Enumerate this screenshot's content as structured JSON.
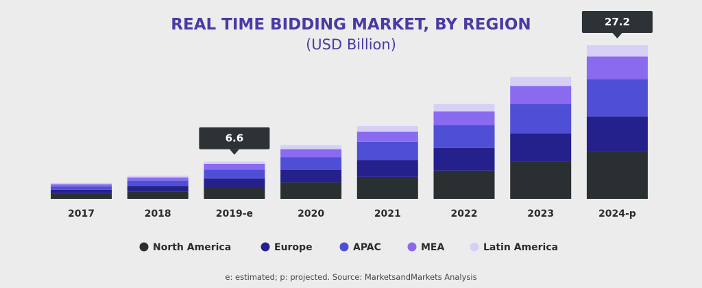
{
  "chart_data": {
    "type": "bar",
    "stacked": true,
    "title": "REAL TIME BIDDING MARKET, BY REGION",
    "subtitle": "(USD Billion)",
    "categories": [
      "2017",
      "2018",
      "2019-e",
      "2020",
      "2021",
      "2022",
      "2023",
      "2024-p"
    ],
    "series": [
      {
        "name": "North America",
        "color": "#2a3032",
        "values": [
          1.0,
          1.3,
          2.0,
          2.9,
          3.9,
          5.0,
          6.6,
          8.3
        ]
      },
      {
        "name": "Europe",
        "color": "#24208c",
        "values": [
          0.6,
          1.0,
          1.6,
          2.2,
          3.0,
          4.0,
          5.0,
          6.3
        ]
      },
      {
        "name": "APAC",
        "color": "#4f4fd6",
        "values": [
          0.6,
          0.9,
          1.6,
          2.3,
          3.2,
          4.1,
          5.2,
          6.6
        ]
      },
      {
        "name": "MEA",
        "color": "#8a6bf0",
        "values": [
          0.4,
          0.6,
          1.0,
          1.4,
          1.8,
          2.4,
          3.2,
          4.0
        ]
      },
      {
        "name": "Latin America",
        "color": "#d6d0f6",
        "values": [
          0.2,
          0.3,
          0.4,
          0.7,
          1.0,
          1.3,
          1.6,
          2.0
        ]
      }
    ],
    "callouts": [
      {
        "category": "2019-e",
        "label": "6.6"
      },
      {
        "category": "2024-p",
        "label": "27.2"
      }
    ],
    "legend_position": "bottom",
    "grid": false
  },
  "footnote": "e: estimated; p: projected. Source: MarketsandMarkets Analysis"
}
